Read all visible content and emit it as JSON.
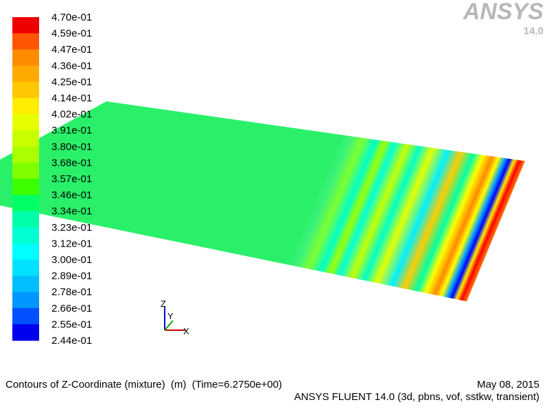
{
  "logo": {
    "brand": "ANSYS",
    "version": "14.0"
  },
  "colorbar": {
    "labels": [
      "4.70e-01",
      "4.59e-01",
      "4.47e-01",
      "4.36e-01",
      "4.25e-01",
      "4.14e-01",
      "4.02e-01",
      "3.91e-01",
      "3.80e-01",
      "3.68e-01",
      "3.57e-01",
      "3.46e-01",
      "3.34e-01",
      "3.23e-01",
      "3.12e-01",
      "3.00e-01",
      "2.89e-01",
      "2.78e-01",
      "2.66e-01",
      "2.55e-01",
      "2.44e-01"
    ],
    "colors": [
      "#ee0000",
      "#ff5500",
      "#ff8c00",
      "#ffaa00",
      "#ffc800",
      "#ffee00",
      "#e6ff00",
      "#c8ff00",
      "#aaff00",
      "#7fff00",
      "#3cff00",
      "#00ff64",
      "#00ffaa",
      "#00ffd2",
      "#00ffff",
      "#00e1ff",
      "#00beff",
      "#0096ff",
      "#0050ff",
      "#0000ee"
    ]
  },
  "triad": {
    "z": "Z",
    "y": "Y",
    "x": "X"
  },
  "footer": {
    "title": "Contours of Z-Coordinate (mixture)  (m)  (Time=6.2750e+00)",
    "date": "May 08, 2015",
    "solver": "ANSYS FLUENT 14.0 (3d, pbns, vof, sstkw, transient)"
  }
}
